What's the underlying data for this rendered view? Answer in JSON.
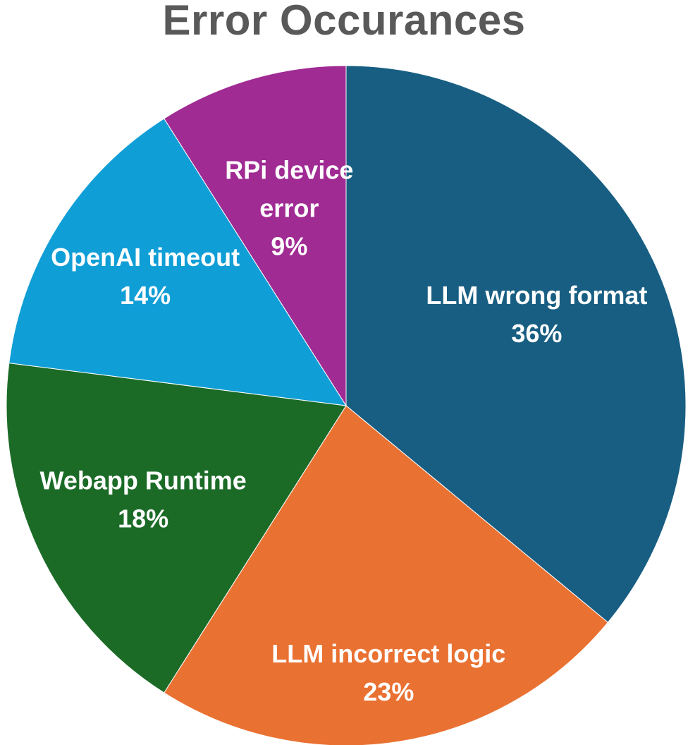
{
  "chart_data": {
    "type": "pie",
    "title": "Error Occurances",
    "categories": [
      "LLM wrong format",
      "LLM incorrect logic",
      "Webapp Runtime",
      "OpenAI timeout",
      "RPi device error"
    ],
    "values": [
      36,
      23,
      18,
      14,
      9
    ],
    "value_labels": [
      "36%",
      "23%",
      "18%",
      "14%",
      "9%"
    ],
    "colors": [
      "#185E82",
      "#E97132",
      "#1B6B27",
      "#109ED6",
      "#A02B93"
    ],
    "label_color": "#FFFFFF",
    "legend": "none",
    "start": "12 o'clock, clockwise"
  }
}
